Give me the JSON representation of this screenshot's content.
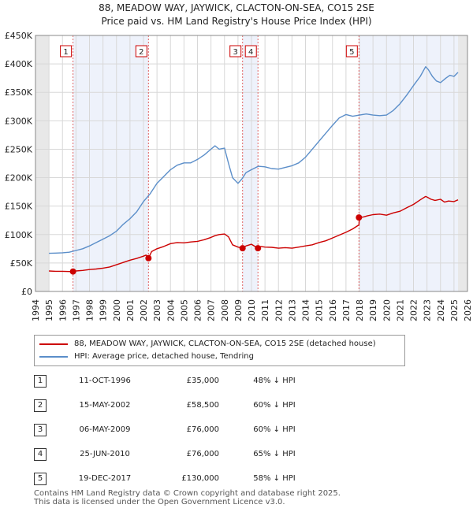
{
  "title_line1": "88, MEADOW WAY, JAYWICK, CLACTON-ON-SEA, CO15 2SE",
  "title_line2": "Price paid vs. HM Land Registry's House Price Index (HPI)",
  "chart_data": {
    "type": "line",
    "xlim": [
      1994,
      2026
    ],
    "ylim": [
      0,
      450000
    ],
    "y_ticks": [
      0,
      50000,
      100000,
      150000,
      200000,
      250000,
      300000,
      350000,
      400000,
      450000
    ],
    "y_tick_labels": [
      "£0",
      "£50K",
      "£100K",
      "£150K",
      "£200K",
      "£250K",
      "£300K",
      "£350K",
      "£400K",
      "£450K"
    ],
    "x_ticks": [
      1994,
      1995,
      1996,
      1997,
      1998,
      1999,
      2000,
      2001,
      2002,
      2003,
      2004,
      2005,
      2006,
      2007,
      2008,
      2009,
      2010,
      2011,
      2012,
      2013,
      2014,
      2015,
      2016,
      2017,
      2018,
      2019,
      2020,
      2021,
      2022,
      2023,
      2024,
      2025,
      2026
    ],
    "data_range": [
      1995.0,
      2025.3
    ],
    "grid": true,
    "series": [
      {
        "name": "88, MEADOW WAY, JAYWICK, CLACTON-ON-SEA, CO15 2SE (detached house)",
        "color": "#cc0000",
        "x": [
          1995.0,
          1995.5,
          1996.0,
          1996.5,
          1996.78,
          1997.0,
          1997.5,
          1998.0,
          1998.5,
          1999.0,
          1999.5,
          2000.0,
          2000.5,
          2001.0,
          2001.5,
          2002.0,
          2002.2,
          2002.37,
          2002.6,
          2003.0,
          2003.5,
          2004.0,
          2004.5,
          2005.0,
          2005.5,
          2006.0,
          2006.5,
          2007.0,
          2007.3,
          2007.6,
          2008.0,
          2008.3,
          2008.6,
          2009.0,
          2009.34,
          2009.6,
          2010.0,
          2010.48,
          2010.7,
          2011.0,
          2011.5,
          2012.0,
          2012.5,
          2013.0,
          2013.5,
          2014.0,
          2014.5,
          2015.0,
          2015.5,
          2016.0,
          2016.5,
          2017.0,
          2017.5,
          2017.96,
          2018.0,
          2018.3,
          2018.6,
          2019.0,
          2019.5,
          2020.0,
          2020.5,
          2021.0,
          2021.5,
          2022.0,
          2022.5,
          2022.9,
          2023.0,
          2023.3,
          2023.6,
          2024.0,
          2024.3,
          2024.6,
          2025.0,
          2025.3
        ],
        "values": [
          36000,
          35500,
          35500,
          35000,
          35000,
          36000,
          37000,
          38500,
          39500,
          41000,
          43000,
          47000,
          51000,
          55000,
          58000,
          62000,
          64000,
          58500,
          70000,
          75000,
          79000,
          84000,
          86000,
          85500,
          87000,
          88000,
          91000,
          95000,
          98000,
          100000,
          101000,
          96000,
          82000,
          78000,
          76000,
          80000,
          83000,
          76000,
          79000,
          78000,
          77500,
          76000,
          77000,
          76000,
          78000,
          80000,
          82000,
          86000,
          89000,
          94000,
          99000,
          104000,
          110000,
          117000,
          130000,
          131000,
          133000,
          135000,
          136000,
          134000,
          138000,
          141000,
          147000,
          153000,
          161000,
          167000,
          166000,
          162000,
          160000,
          162000,
          157000,
          159000,
          158000,
          161000
        ]
      },
      {
        "name": "HPI: Average price, detached house, Tendring",
        "color": "#5b8ec9",
        "x": [
          1995.0,
          1995.5,
          1996.0,
          1996.5,
          1997.0,
          1997.5,
          1998.0,
          1998.5,
          1999.0,
          1999.5,
          2000.0,
          2000.5,
          2001.0,
          2001.5,
          2002.0,
          2002.5,
          2003.0,
          2003.5,
          2004.0,
          2004.5,
          2005.0,
          2005.5,
          2006.0,
          2006.5,
          2007.0,
          2007.3,
          2007.6,
          2008.0,
          2008.3,
          2008.6,
          2009.0,
          2009.3,
          2009.6,
          2010.0,
          2010.5,
          2011.0,
          2011.5,
          2012.0,
          2012.5,
          2013.0,
          2013.5,
          2014.0,
          2014.5,
          2015.0,
          2015.5,
          2016.0,
          2016.5,
          2017.0,
          2017.5,
          2018.0,
          2018.5,
          2019.0,
          2019.5,
          2020.0,
          2020.5,
          2021.0,
          2021.5,
          2022.0,
          2022.5,
          2022.9,
          2023.1,
          2023.4,
          2023.7,
          2024.0,
          2024.4,
          2024.7,
          2025.0,
          2025.3
        ],
        "values": [
          67000,
          67500,
          68000,
          69000,
          72000,
          75000,
          80000,
          86000,
          92000,
          98000,
          106000,
          118000,
          128000,
          140000,
          158000,
          172000,
          190000,
          202000,
          214000,
          222000,
          226000,
          226000,
          232000,
          240000,
          250000,
          256000,
          250000,
          252000,
          225000,
          200000,
          190000,
          198000,
          209000,
          214000,
          220000,
          219000,
          216000,
          215000,
          218000,
          221000,
          226000,
          236000,
          250000,
          264000,
          278000,
          292000,
          305000,
          311000,
          308000,
          310000,
          312000,
          310000,
          309000,
          310000,
          318000,
          330000,
          345000,
          362000,
          378000,
          395000,
          390000,
          378000,
          370000,
          367000,
          375000,
          380000,
          378000,
          385000
        ]
      }
    ],
    "sales": [
      {
        "n": "1",
        "x": 1996.78,
        "y": 35000
      },
      {
        "n": "2",
        "x": 2002.37,
        "y": 58500
      },
      {
        "n": "3",
        "x": 2009.34,
        "y": 76000
      },
      {
        "n": "4",
        "x": 2010.48,
        "y": 76000
      },
      {
        "n": "5",
        "x": 2017.96,
        "y": 130000
      }
    ],
    "shaded_spans": [
      [
        1994,
        1995.0
      ],
      [
        2025.3,
        2026
      ]
    ],
    "highlight_spans": [
      [
        1996.78,
        2002.37
      ],
      [
        2009.34,
        2010.48
      ],
      [
        2017.96,
        2025.3
      ]
    ]
  },
  "legend": {
    "red_label": "88, MEADOW WAY, JAYWICK, CLACTON-ON-SEA, CO15 2SE (detached house)",
    "blue_label": "HPI: Average price, detached house, Tendring"
  },
  "sales_table": [
    {
      "num": "1",
      "date": "11-OCT-1996",
      "price": "£35,000",
      "hpi": "48% ↓ HPI"
    },
    {
      "num": "2",
      "date": "15-MAY-2002",
      "price": "£58,500",
      "hpi": "60% ↓ HPI"
    },
    {
      "num": "3",
      "date": "06-MAY-2009",
      "price": "£76,000",
      "hpi": "60% ↓ HPI"
    },
    {
      "num": "4",
      "date": "25-JUN-2010",
      "price": "£76,000",
      "hpi": "65% ↓ HPI"
    },
    {
      "num": "5",
      "date": "19-DEC-2017",
      "price": "£130,000",
      "hpi": "58% ↓ HPI"
    }
  ],
  "footer": {
    "line1": "Contains HM Land Registry data © Crown copyright and database right 2025.",
    "line2": "This data is licensed under the Open Government Licence v3.0."
  }
}
